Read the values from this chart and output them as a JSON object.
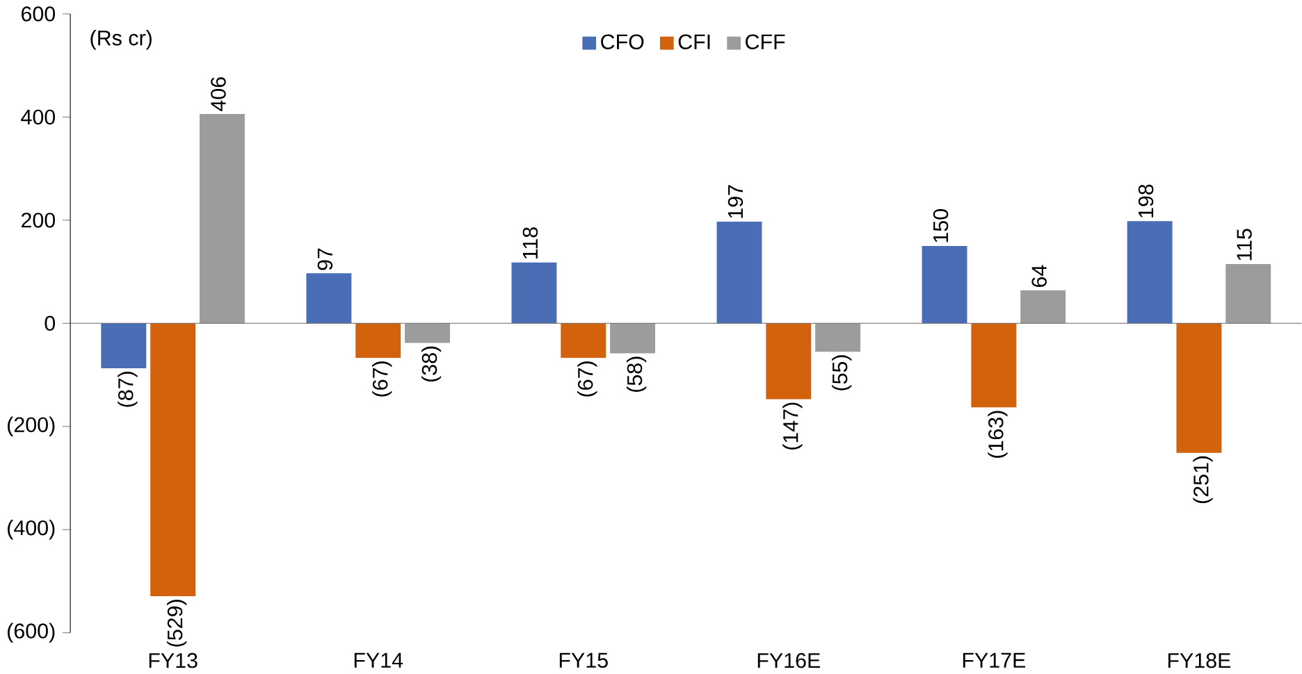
{
  "chart_data": {
    "type": "bar",
    "ylabel": "(Rs cr)",
    "categories": [
      "FY13",
      "FY14",
      "FY15",
      "FY16E",
      "FY17E",
      "FY18E"
    ],
    "series": [
      {
        "name": "CFO",
        "color": "#4a6eb6",
        "values": [
          -87,
          97,
          118,
          197,
          150,
          198
        ],
        "value_labels": [
          "(87)",
          "97",
          "118",
          "197",
          "150",
          "198"
        ]
      },
      {
        "name": "CFI",
        "color": "#d2620b",
        "values": [
          -529,
          -67,
          -67,
          -147,
          -163,
          -251
        ],
        "value_labels": [
          "(529)",
          "(67)",
          "(67)",
          "(147)",
          "(163)",
          "(251)"
        ]
      },
      {
        "name": "CFF",
        "color": "#9c9c9c",
        "values": [
          406,
          -38,
          -58,
          -55,
          64,
          115
        ],
        "value_labels": [
          "406",
          "(38)",
          "(58)",
          "(55)",
          "64",
          "115"
        ]
      }
    ],
    "ylim": [
      -600,
      600
    ],
    "yticks": [
      {
        "value": -600,
        "label": "(600)"
      },
      {
        "value": -400,
        "label": "(400)"
      },
      {
        "value": -200,
        "label": "(200)"
      },
      0,
      200,
      400,
      600
    ],
    "legend": "top"
  }
}
